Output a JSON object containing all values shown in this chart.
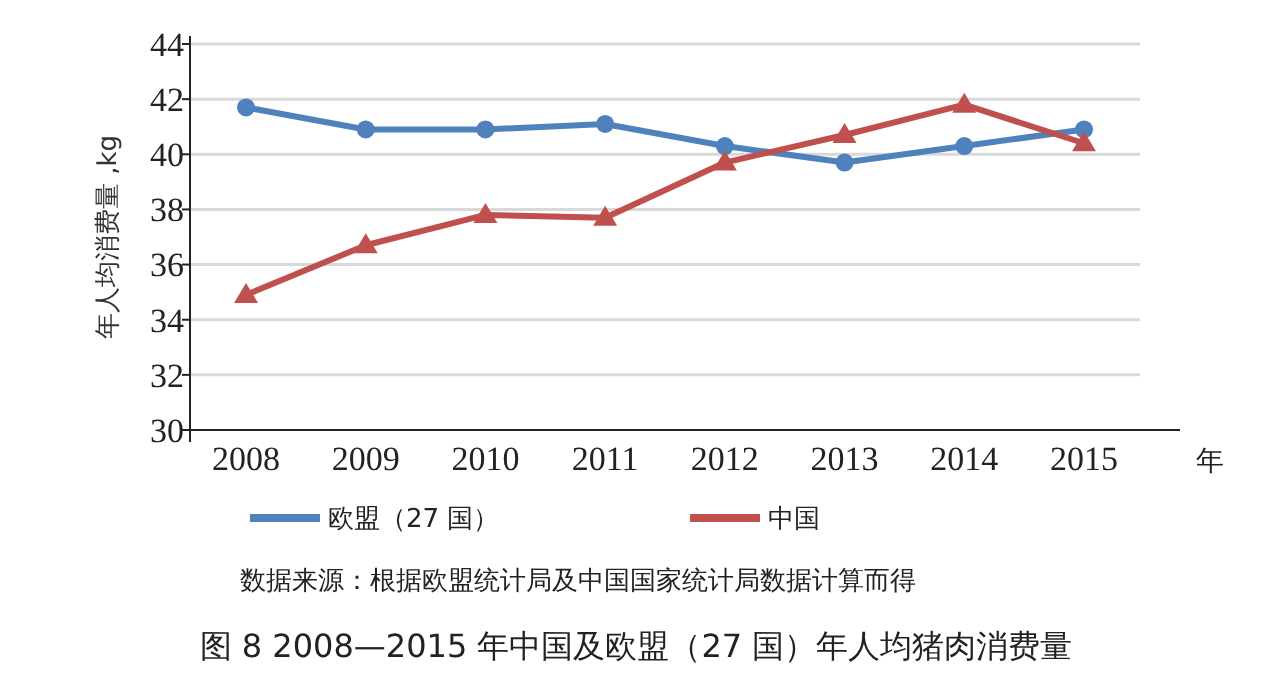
{
  "chart_data": {
    "type": "line",
    "title": "图 8 2008—2015 年中国及欧盟（27 国）年人均猪肉消费量",
    "xlabel": "年",
    "ylabel": "年人均消费量 ,kg",
    "categories": [
      "2008",
      "2009",
      "2010",
      "2011",
      "2012",
      "2013",
      "2014",
      "2015"
    ],
    "series": [
      {
        "name": "欧盟（27 国）",
        "color": "#4f81bd",
        "marker": "circle",
        "values": [
          41.7,
          40.9,
          40.9,
          41.1,
          40.3,
          39.7,
          40.3,
          40.9
        ]
      },
      {
        "name": "中国",
        "color": "#c0504d",
        "marker": "triangle",
        "values": [
          34.9,
          36.7,
          37.8,
          37.7,
          39.7,
          40.7,
          41.8,
          40.4
        ]
      }
    ],
    "ylim": [
      30,
      44
    ],
    "yticks": [
      30,
      32,
      34,
      36,
      38,
      40,
      42,
      44
    ],
    "grid": "y",
    "legend": "bottom",
    "line_style": "solid",
    "annotations": [
      "数据来源：根据欧盟统计局及中国国家统计局数据计算而得"
    ]
  }
}
